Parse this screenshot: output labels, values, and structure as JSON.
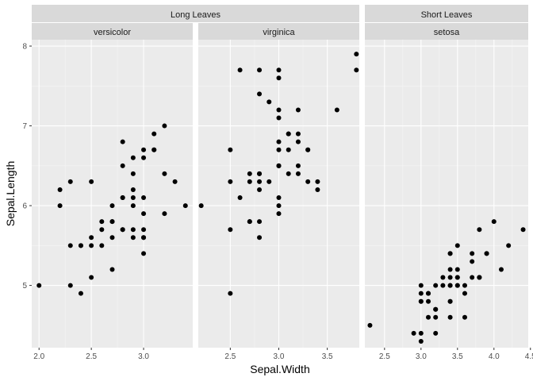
{
  "chart_data": {
    "type": "scatter",
    "xlabel": "Sepal.Width",
    "ylabel": "Sepal.Length",
    "ylim": [
      4.22,
      8.08
    ],
    "y_ticks": [
      5,
      6,
      7,
      8
    ],
    "groups": [
      {
        "label": "Long Leaves",
        "panels": [
          {
            "label": "versicolor",
            "xlim": [
              1.93,
              3.47
            ],
            "x_ticks": [
              2.0,
              2.5,
              3.0
            ],
            "x_tick_labels": [
              "2.0",
              "2.5",
              "3.0"
            ],
            "points": [
              {
                "x": 3.2,
                "y": 7.0
              },
              {
                "x": 3.2,
                "y": 6.4
              },
              {
                "x": 3.1,
                "y": 6.9
              },
              {
                "x": 2.3,
                "y": 5.5
              },
              {
                "x": 2.8,
                "y": 6.5
              },
              {
                "x": 2.8,
                "y": 5.7
              },
              {
                "x": 3.3,
                "y": 6.3
              },
              {
                "x": 2.4,
                "y": 4.9
              },
              {
                "x": 2.9,
                "y": 6.6
              },
              {
                "x": 2.7,
                "y": 5.2
              },
              {
                "x": 2.0,
                "y": 5.0
              },
              {
                "x": 3.0,
                "y": 5.9
              },
              {
                "x": 2.2,
                "y": 6.0
              },
              {
                "x": 2.9,
                "y": 6.1
              },
              {
                "x": 2.9,
                "y": 5.6
              },
              {
                "x": 3.1,
                "y": 6.7
              },
              {
                "x": 3.0,
                "y": 5.6
              },
              {
                "x": 2.7,
                "y": 5.8
              },
              {
                "x": 2.2,
                "y": 6.2
              },
              {
                "x": 2.5,
                "y": 5.6
              },
              {
                "x": 3.2,
                "y": 5.9
              },
              {
                "x": 2.8,
                "y": 6.1
              },
              {
                "x": 2.5,
                "y": 6.3
              },
              {
                "x": 2.8,
                "y": 6.1
              },
              {
                "x": 2.9,
                "y": 6.4
              },
              {
                "x": 3.0,
                "y": 6.6
              },
              {
                "x": 2.8,
                "y": 6.8
              },
              {
                "x": 3.0,
                "y": 6.7
              },
              {
                "x": 2.9,
                "y": 6.0
              },
              {
                "x": 2.6,
                "y": 5.7
              },
              {
                "x": 2.4,
                "y": 5.5
              },
              {
                "x": 2.4,
                "y": 5.5
              },
              {
                "x": 2.7,
                "y": 5.8
              },
              {
                "x": 2.7,
                "y": 6.0
              },
              {
                "x": 3.0,
                "y": 5.4
              },
              {
                "x": 3.4,
                "y": 6.0
              },
              {
                "x": 3.1,
                "y": 6.7
              },
              {
                "x": 2.3,
                "y": 6.3
              },
              {
                "x": 3.0,
                "y": 5.6
              },
              {
                "x": 2.5,
                "y": 5.5
              },
              {
                "x": 2.6,
                "y": 5.5
              },
              {
                "x": 3.0,
                "y": 6.1
              },
              {
                "x": 2.6,
                "y": 5.8
              },
              {
                "x": 2.3,
                "y": 5.0
              },
              {
                "x": 2.7,
                "y": 5.6
              },
              {
                "x": 3.0,
                "y": 5.7
              },
              {
                "x": 2.9,
                "y": 5.7
              },
              {
                "x": 2.9,
                "y": 6.2
              },
              {
                "x": 2.5,
                "y": 5.1
              },
              {
                "x": 2.8,
                "y": 5.7
              }
            ]
          },
          {
            "label": "virginica",
            "xlim": [
              2.17,
              3.83
            ],
            "x_ticks": [
              2.5,
              3.0,
              3.5
            ],
            "x_tick_labels": [
              "2.5",
              "3.0",
              "3.5"
            ],
            "points": [
              {
                "x": 3.3,
                "y": 6.3
              },
              {
                "x": 2.7,
                "y": 5.8
              },
              {
                "x": 3.0,
                "y": 7.1
              },
              {
                "x": 2.9,
                "y": 6.3
              },
              {
                "x": 3.0,
                "y": 6.5
              },
              {
                "x": 3.0,
                "y": 7.6
              },
              {
                "x": 2.5,
                "y": 4.9
              },
              {
                "x": 2.9,
                "y": 7.3
              },
              {
                "x": 2.5,
                "y": 6.7
              },
              {
                "x": 3.6,
                "y": 7.2
              },
              {
                "x": 3.2,
                "y": 6.5
              },
              {
                "x": 2.7,
                "y": 6.4
              },
              {
                "x": 3.0,
                "y": 6.8
              },
              {
                "x": 2.5,
                "y": 5.7
              },
              {
                "x": 2.8,
                "y": 5.8
              },
              {
                "x": 3.2,
                "y": 6.4
              },
              {
                "x": 3.0,
                "y": 6.5
              },
              {
                "x": 3.8,
                "y": 7.7
              },
              {
                "x": 2.6,
                "y": 7.7
              },
              {
                "x": 2.2,
                "y": 6.0
              },
              {
                "x": 3.2,
                "y": 6.9
              },
              {
                "x": 2.8,
                "y": 5.6
              },
              {
                "x": 2.8,
                "y": 7.7
              },
              {
                "x": 2.7,
                "y": 6.3
              },
              {
                "x": 3.3,
                "y": 6.7
              },
              {
                "x": 3.2,
                "y": 7.2
              },
              {
                "x": 2.8,
                "y": 6.2
              },
              {
                "x": 3.0,
                "y": 6.1
              },
              {
                "x": 2.8,
                "y": 6.4
              },
              {
                "x": 3.0,
                "y": 7.2
              },
              {
                "x": 2.8,
                "y": 7.4
              },
              {
                "x": 3.8,
                "y": 7.9
              },
              {
                "x": 2.8,
                "y": 6.4
              },
              {
                "x": 2.8,
                "y": 6.3
              },
              {
                "x": 2.6,
                "y": 6.1
              },
              {
                "x": 3.0,
                "y": 7.7
              },
              {
                "x": 3.4,
                "y": 6.3
              },
              {
                "x": 3.1,
                "y": 6.4
              },
              {
                "x": 3.0,
                "y": 6.0
              },
              {
                "x": 3.1,
                "y": 6.9
              },
              {
                "x": 3.1,
                "y": 6.7
              },
              {
                "x": 3.1,
                "y": 6.9
              },
              {
                "x": 2.7,
                "y": 5.8
              },
              {
                "x": 3.2,
                "y": 6.8
              },
              {
                "x": 3.3,
                "y": 6.7
              },
              {
                "x": 3.0,
                "y": 6.7
              },
              {
                "x": 2.5,
                "y": 6.3
              },
              {
                "x": 3.0,
                "y": 6.5
              },
              {
                "x": 3.4,
                "y": 6.2
              },
              {
                "x": 3.0,
                "y": 5.9
              }
            ]
          }
        ]
      },
      {
        "label": "Short Leaves",
        "panels": [
          {
            "label": "setosa",
            "xlim": [
              2.23,
              4.47
            ],
            "x_ticks": [
              2.5,
              3.0,
              3.5,
              4.0,
              4.5
            ],
            "x_tick_labels": [
              "2.5",
              "3.0",
              "3.5",
              "4.0",
              "4.5"
            ],
            "points": [
              {
                "x": 3.5,
                "y": 5.1
              },
              {
                "x": 3.0,
                "y": 4.9
              },
              {
                "x": 3.2,
                "y": 4.7
              },
              {
                "x": 3.1,
                "y": 4.6
              },
              {
                "x": 3.6,
                "y": 5.0
              },
              {
                "x": 3.9,
                "y": 5.4
              },
              {
                "x": 3.4,
                "y": 4.6
              },
              {
                "x": 3.4,
                "y": 5.0
              },
              {
                "x": 2.9,
                "y": 4.4
              },
              {
                "x": 3.1,
                "y": 4.9
              },
              {
                "x": 3.7,
                "y": 5.4
              },
              {
                "x": 3.4,
                "y": 4.8
              },
              {
                "x": 3.0,
                "y": 4.8
              },
              {
                "x": 3.0,
                "y": 4.3
              },
              {
                "x": 4.0,
                "y": 5.8
              },
              {
                "x": 4.4,
                "y": 5.7
              },
              {
                "x": 3.9,
                "y": 5.4
              },
              {
                "x": 3.5,
                "y": 5.1
              },
              {
                "x": 3.8,
                "y": 5.7
              },
              {
                "x": 3.8,
                "y": 5.1
              },
              {
                "x": 3.4,
                "y": 5.4
              },
              {
                "x": 3.7,
                "y": 5.1
              },
              {
                "x": 3.6,
                "y": 4.6
              },
              {
                "x": 3.3,
                "y": 5.1
              },
              {
                "x": 3.4,
                "y": 4.8
              },
              {
                "x": 3.0,
                "y": 5.0
              },
              {
                "x": 3.4,
                "y": 5.0
              },
              {
                "x": 3.5,
                "y": 5.2
              },
              {
                "x": 3.4,
                "y": 5.2
              },
              {
                "x": 3.2,
                "y": 4.7
              },
              {
                "x": 3.1,
                "y": 4.8
              },
              {
                "x": 3.4,
                "y": 5.4
              },
              {
                "x": 4.1,
                "y": 5.2
              },
              {
                "x": 4.2,
                "y": 5.5
              },
              {
                "x": 3.1,
                "y": 4.9
              },
              {
                "x": 3.2,
                "y": 5.0
              },
              {
                "x": 3.5,
                "y": 5.5
              },
              {
                "x": 3.6,
                "y": 4.9
              },
              {
                "x": 3.0,
                "y": 4.4
              },
              {
                "x": 3.4,
                "y": 5.1
              },
              {
                "x": 3.5,
                "y": 5.0
              },
              {
                "x": 2.3,
                "y": 4.5
              },
              {
                "x": 3.2,
                "y": 4.4
              },
              {
                "x": 3.5,
                "y": 5.0
              },
              {
                "x": 3.8,
                "y": 5.1
              },
              {
                "x": 3.0,
                "y": 4.8
              },
              {
                "x": 3.8,
                "y": 5.1
              },
              {
                "x": 3.2,
                "y": 4.6
              },
              {
                "x": 3.7,
                "y": 5.3
              },
              {
                "x": 3.3,
                "y": 5.0
              }
            ]
          }
        ]
      }
    ],
    "colors": {
      "panel_background": "#ebebeb",
      "strip_background": "#d9d9d9",
      "grid_major": "#ffffff",
      "point": "#000000",
      "axis_text": "#4d4d4d"
    },
    "grid": true,
    "legend": "none"
  }
}
